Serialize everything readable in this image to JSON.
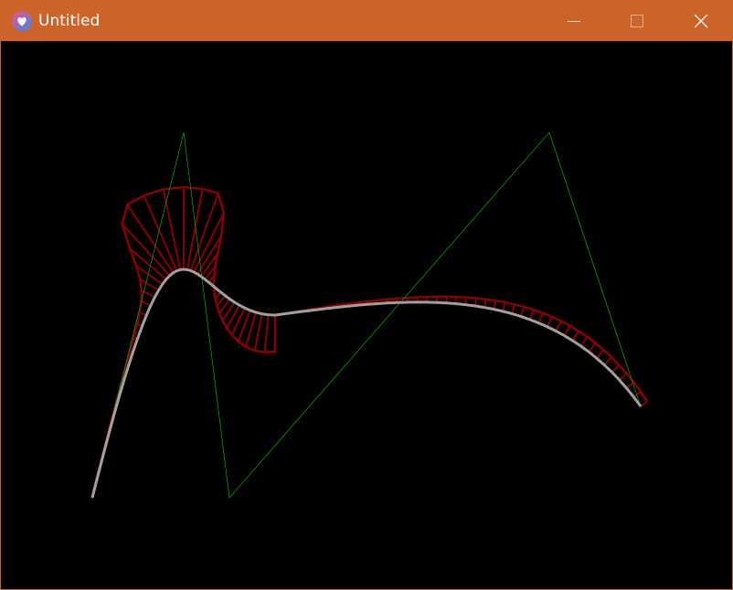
{
  "window": {
    "title": "Untitled",
    "colors": {
      "titlebar": "#cc6329",
      "border": "#c8642a",
      "background": "#000000",
      "curve": "#a0a0a0",
      "offset_curve": "#8b0000",
      "hatch": "#8b0000",
      "control_polygon": "#00a000"
    }
  },
  "icons": {
    "app": "heart-app-icon",
    "minimize": "minimize-icon",
    "maximize": "maximize-icon",
    "close": "close-icon"
  },
  "scene": {
    "type": "cubic-bezier-offset-visualization",
    "segments": 2,
    "hatch_count": 80
  }
}
